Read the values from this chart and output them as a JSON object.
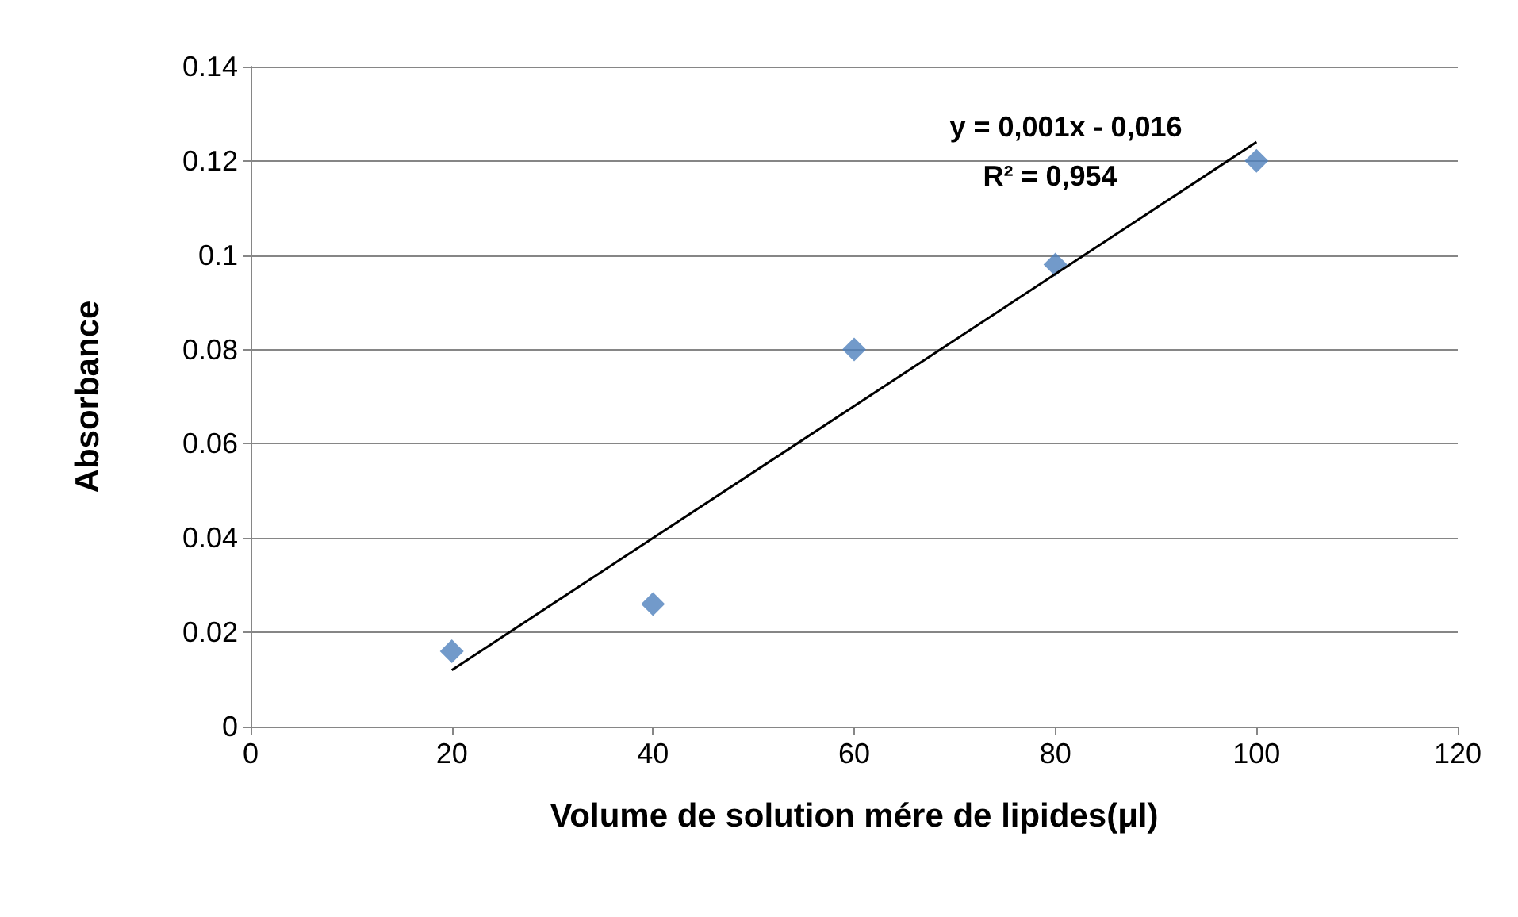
{
  "chart_data": {
    "type": "scatter",
    "xlabel": "Volume de solution mére de lipides(μl)",
    "ylabel": "Absorbance",
    "x": [
      20,
      40,
      60,
      80,
      100
    ],
    "series": [
      {
        "color": "#4f81bd",
        "marker": "diamond",
        "values": [
          0.016,
          0.026,
          0.08,
          0.098,
          0.12
        ]
      },
      {
        "type": "line",
        "color": "#000000",
        "marker": "none",
        "x": [
          20,
          100
        ],
        "values": [
          0.012,
          0.124
        ]
      }
    ],
    "annotations": [
      "y = 0,001x - 0,016",
      "R² = 0,954"
    ],
    "xlim": [
      0,
      120
    ],
    "xticks": [
      0,
      20,
      40,
      60,
      80,
      100,
      120
    ],
    "ylim": [
      0,
      0.14
    ],
    "yticks": [
      0,
      0.02,
      0.04,
      0.06,
      0.08,
      0.1,
      0.12,
      0.14
    ],
    "grid": "y"
  }
}
